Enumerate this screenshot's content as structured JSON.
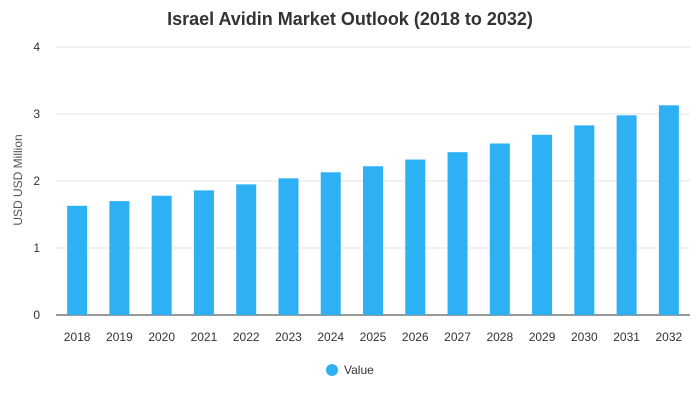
{
  "chart_data": {
    "type": "bar",
    "title": "Israel Avidin Market Outlook (2018 to 2032)",
    "xlabel": "",
    "ylabel": "USD USD Million",
    "ylim": [
      0,
      4
    ],
    "yticks": [
      "0",
      "1",
      "2",
      "3",
      "4"
    ],
    "categories": [
      "2018",
      "2019",
      "2020",
      "2021",
      "2022",
      "2023",
      "2024",
      "2025",
      "2026",
      "2027",
      "2028",
      "2029",
      "2030",
      "2031",
      "2032"
    ],
    "series": [
      {
        "name": "Value",
        "values": [
          1.63,
          1.7,
          1.78,
          1.86,
          1.95,
          2.04,
          2.13,
          2.22,
          2.32,
          2.43,
          2.56,
          2.69,
          2.83,
          2.98,
          3.13
        ]
      }
    ],
    "grid": true,
    "legend_position": "bottom-center",
    "colors": {
      "bar": "#2EB0F5",
      "grid": "#e6e6e6",
      "axis": "#333333"
    }
  }
}
